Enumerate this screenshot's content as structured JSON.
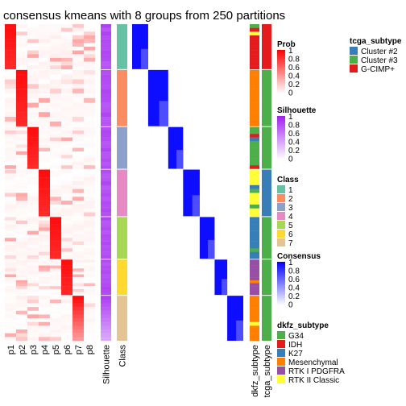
{
  "chart_data": {
    "type": "heatmap",
    "title": "consensus kmeans with 8 groups from 250 partitions",
    "columns": {
      "prob": [
        "p1",
        "p2",
        "p3",
        "p4",
        "p5",
        "p6",
        "p7",
        "p8"
      ],
      "silhouette": "Silhouette",
      "class": "Class",
      "dkfz_subtype": "dkfz_subtype",
      "tcga_subtype": "tcga_subtype"
    },
    "row_groups": [
      {
        "class": 1,
        "rows": 56
      },
      {
        "class": 2,
        "rows": 70
      },
      {
        "class": 3,
        "rows": 52
      },
      {
        "class": 4,
        "rows": 58
      },
      {
        "class": 5,
        "rows": 52
      },
      {
        "class": 6,
        "rows": 44
      },
      {
        "class": 7,
        "rows": 56
      }
    ],
    "dominant_prob_column_by_group": [
      "p1",
      "p2",
      "p3",
      "p4",
      "p5",
      "p6",
      "p7"
    ],
    "legends": {
      "prob": {
        "title": "Prob",
        "ticks": [
          "1",
          "0.8",
          "0.6",
          "0.4",
          "0.2",
          "0"
        ],
        "colors": [
          "#FF0000",
          "#FFFFFF"
        ]
      },
      "silhouette": {
        "title": "Silhouette",
        "ticks": [
          "1",
          "0.8",
          "0.6",
          "0.4",
          "0.2",
          "0"
        ],
        "colors": [
          "#A020F0",
          "#FFFFFF"
        ]
      },
      "class": {
        "title": "Class",
        "items": [
          {
            "label": "1",
            "color": "#66C2A5"
          },
          {
            "label": "2",
            "color": "#FC8D62"
          },
          {
            "label": "3",
            "color": "#8DA0CB"
          },
          {
            "label": "4",
            "color": "#E78AC3"
          },
          {
            "label": "5",
            "color": "#A6D854"
          },
          {
            "label": "6",
            "color": "#FFD92F"
          },
          {
            "label": "7",
            "color": "#E5C494"
          }
        ]
      },
      "consensus": {
        "title": "Consensus",
        "ticks": [
          "1",
          "0.8",
          "0.6",
          "0.4",
          "0.2",
          "0"
        ],
        "colors": [
          "#0000FF",
          "#FFFFFF"
        ]
      },
      "dkfz_subtype": {
        "title": "dkfz_subtype",
        "items": [
          {
            "label": "G34",
            "color": "#4DAF4A"
          },
          {
            "label": "IDH",
            "color": "#E41A1C"
          },
          {
            "label": "K27",
            "color": "#377EB8"
          },
          {
            "label": "Mesenchymal",
            "color": "#FF7F00"
          },
          {
            "label": "RTK I PDGFRA",
            "color": "#984EA3"
          },
          {
            "label": "RTK II Classic",
            "color": "#FFFF33"
          }
        ]
      },
      "tcga_subtype": {
        "title": "tcga_subtype",
        "items": [
          {
            "label": "Cluster #2",
            "color": "#377EB8"
          },
          {
            "label": "Cluster #3",
            "color": "#4DAF4A"
          },
          {
            "label": "G-CIMP+",
            "color": "#E41A1C"
          }
        ]
      }
    }
  }
}
